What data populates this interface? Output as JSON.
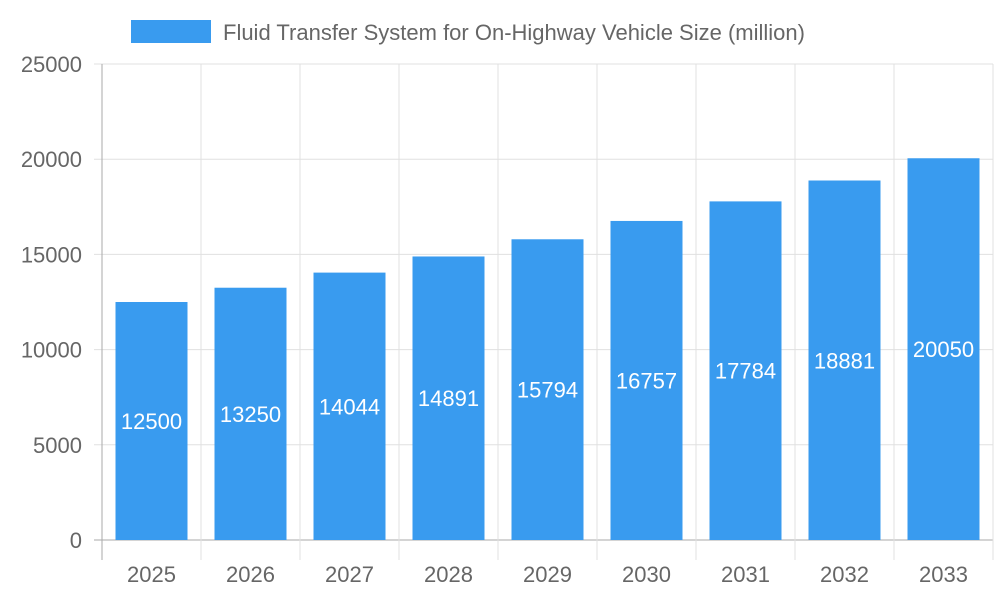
{
  "chart_data": {
    "type": "bar",
    "title": "",
    "categories": [
      "2025",
      "2026",
      "2027",
      "2028",
      "2029",
      "2030",
      "2031",
      "2032",
      "2033"
    ],
    "series": [
      {
        "name": "Fluid Transfer System for On-Highway Vehicle Size (million)",
        "values": [
          12500,
          13250,
          14044,
          14891,
          15794,
          16757,
          17784,
          18881,
          20050
        ]
      }
    ],
    "xlabel": "",
    "ylabel": "",
    "ylim": [
      0,
      25000
    ],
    "yticks": [
      0,
      5000,
      10000,
      15000,
      20000,
      25000
    ],
    "grid": true,
    "legend": "top",
    "data_labels": true,
    "colors": {
      "bar": "#399bef",
      "grid": "#e0e0e0",
      "axis": "#aaaaaa",
      "text": "#666666",
      "label": "#ffffff"
    }
  }
}
